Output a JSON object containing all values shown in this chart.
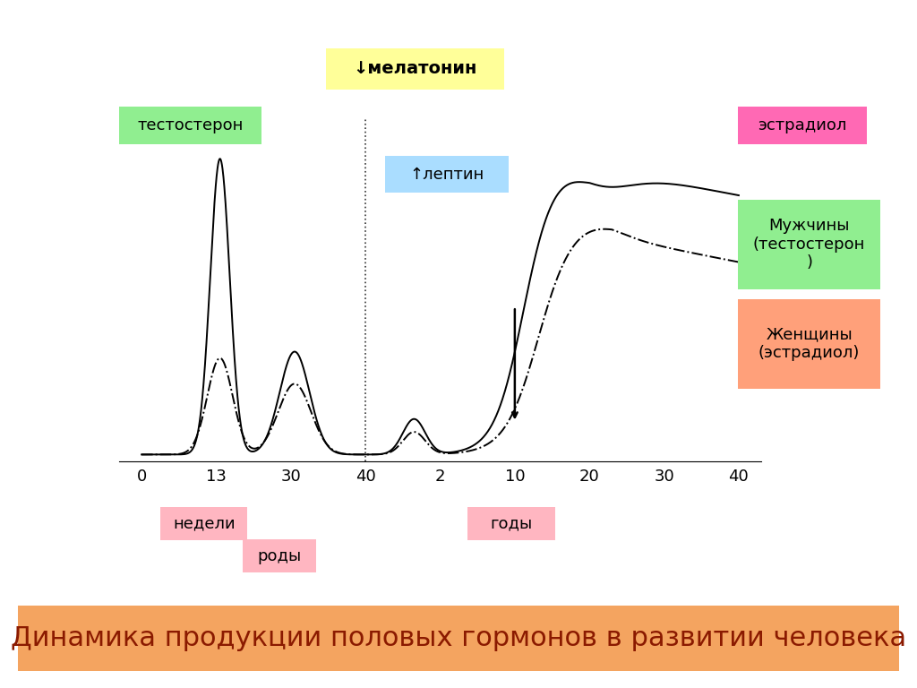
{
  "title": "Динамика продукции половых гормонов в развитии человека",
  "title_bg": "#f4a460",
  "title_color": "#8b1a00",
  "title_fontsize": 22,
  "melatonin_label": "↓мелатонин",
  "melatonin_bg": "#ffff99",
  "testosterone_label": "тестостерон",
  "testosterone_bg": "#90ee90",
  "estradiol_label": "эстрадиол",
  "estradiol_bg": "#ff69b4",
  "leptin_label": "↑лептин",
  "leptin_bg": "#aaddff",
  "men_label": "Мужчины\n(тестостерон\n)",
  "men_bg": "#90ee90",
  "women_label": "Женщины\n(эстрадиол)",
  "women_bg": "#ffa07a",
  "nedeli_label": "недели",
  "nedeli_bg": "#ffb6c1",
  "rody_label": "роды",
  "rody_bg": "#ffb6c1",
  "gody_label": "годы",
  "gody_bg": "#ffb6c1",
  "xtick_labels": [
    "0",
    "13",
    "30",
    "40",
    "2",
    "10",
    "20",
    "30",
    "40"
  ],
  "background_color": "#ffffff",
  "line_color": "#000000"
}
